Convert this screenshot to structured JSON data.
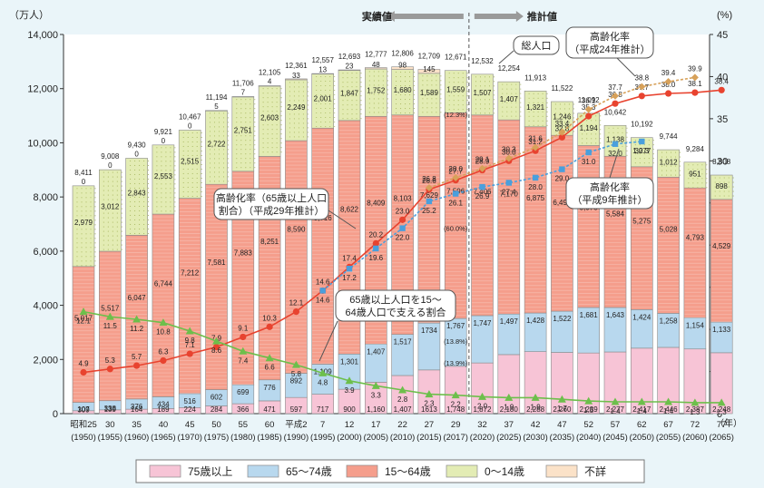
{
  "chart_data": {
    "type": "bar",
    "stacked": true,
    "y_left_unit": "（万人）",
    "y_right_unit": "(%)",
    "y_left_ticks": [
      "0",
      "2,000",
      "4,000",
      "6,000",
      "8,000",
      "10,000",
      "12,000",
      "14,000"
    ],
    "y_right_ticks": [
      "0",
      "5",
      "10",
      "15",
      "20",
      "25",
      "30",
      "35",
      "40",
      "45"
    ],
    "ylim": [
      0,
      14000
    ],
    "y2lim": [
      0,
      45
    ],
    "x_unit": "（年）",
    "categories": [
      {
        "era": "昭和25",
        "year": "(1950)"
      },
      {
        "era": "30",
        "year": "(1955)"
      },
      {
        "era": "35",
        "year": "(1960)"
      },
      {
        "era": "40",
        "year": "(1965)"
      },
      {
        "era": "45",
        "year": "(1970)"
      },
      {
        "era": "50",
        "year": "(1975)"
      },
      {
        "era": "55",
        "year": "(1980)"
      },
      {
        "era": "60",
        "year": "(1985)"
      },
      {
        "era": "平成2",
        "year": "(1990)"
      },
      {
        "era": "7",
        "year": "(1995)"
      },
      {
        "era": "12",
        "year": "(2000)"
      },
      {
        "era": "17",
        "year": "(2005)"
      },
      {
        "era": "22",
        "year": "(2010)"
      },
      {
        "era": "27",
        "year": "(2015)"
      },
      {
        "era": "29",
        "year": "(2017)"
      },
      {
        "era": "32",
        "year": "(2020)"
      },
      {
        "era": "37",
        "year": "(2025)"
      },
      {
        "era": "42",
        "year": "(2030)"
      },
      {
        "era": "47",
        "year": "(2035)"
      },
      {
        "era": "52",
        "year": "(2040)"
      },
      {
        "era": "57",
        "year": "(2045)"
      },
      {
        "era": "62",
        "year": "(2050)"
      },
      {
        "era": "67",
        "year": "(2055)"
      },
      {
        "era": "72",
        "year": "(2060)"
      },
      {
        "era": "77",
        "year": "(2065)"
      }
    ],
    "series": [
      {
        "name": "75歳以上",
        "color": "#f7c4d6",
        "values": [
          107,
          139,
          164,
          189,
          224,
          284,
          366,
          471,
          597,
          717,
          900,
          1160,
          1407,
          1613,
          1748,
          1872,
          2180,
          2288,
          2260,
          2239,
          2277,
          2417,
          2446,
          2387,
          2248
        ],
        "labels": [
          "107",
          "139",
          "164",
          "189",
          "224",
          "284",
          "366",
          "471",
          "597",
          "717",
          "900",
          "1,160",
          "1,407",
          "1613",
          "1,748",
          "1,872",
          "2,180",
          "2,288",
          "2,260",
          "2,239",
          "2,277",
          "2,417",
          "2,446",
          "2,387",
          "2,248"
        ]
      },
      {
        "name": "65～74歳",
        "color": "#b8d8ee",
        "values": [
          309,
          338,
          376,
          434,
          516,
          602,
          699,
          776,
          892,
          1109,
          1301,
          1407,
          1517,
          1734,
          1767,
          1747,
          1497,
          1428,
          1522,
          1681,
          1643,
          1424,
          1258,
          1154,
          1133
        ],
        "labels": [
          "309",
          "338",
          "376",
          "434",
          "516",
          "602",
          "699",
          "776",
          "892",
          "1,109",
          "1,301",
          "1,407",
          "1,517",
          "1734",
          "1,767",
          "1,747",
          "1,497",
          "1,428",
          "1,522",
          "1,681",
          "1,643",
          "1,424",
          "1,258",
          "1,154",
          "1,133"
        ]
      },
      {
        "name": "15～64歳",
        "color": "#f59e8c",
        "values": [
          5017,
          5517,
          6047,
          6744,
          7212,
          7581,
          7883,
          8251,
          8590,
          8716,
          8622,
          8409,
          8103,
          7629,
          7596,
          7406,
          7170,
          6875,
          6494,
          5978,
          5584,
          5275,
          5028,
          4793,
          4529
        ],
        "labels": [
          "5,017",
          "5,517",
          "6,047",
          "6,744",
          "7,212",
          "7,581",
          "7,883",
          "8,251",
          "8,590",
          "8,716",
          "8,622",
          "8,409",
          "8,103",
          "7,629",
          "7,596",
          "7,406",
          "7,170",
          "6,875",
          "6,494",
          "5,978",
          "5,584",
          "5,275",
          "5,028",
          "4,793",
          "4,529"
        ]
      },
      {
        "name": "0～14歳",
        "color": "#e3ecb4",
        "values": [
          2979,
          3012,
          2843,
          2553,
          2515,
          2722,
          2751,
          2603,
          2249,
          2001,
          1847,
          1752,
          1680,
          1589,
          1559,
          1507,
          1407,
          1321,
          1246,
          1194,
          1138,
          1077,
          1012,
          951,
          898
        ],
        "labels": [
          "2,979",
          "3,012",
          "2,843",
          "2,553",
          "2,515",
          "2,722",
          "2,751",
          "2,603",
          "2,249",
          "2,001",
          "1,847",
          "1,752",
          "1,680",
          "1,589",
          "1,559",
          "1,507",
          "1,407",
          "1,321",
          "1,246",
          "1,194",
          "1,138",
          "1,077",
          "1,012",
          "951",
          "898"
        ]
      },
      {
        "name": "不詳",
        "color": "#fbe2c8",
        "values": [
          0,
          0,
          0,
          0,
          0,
          5,
          7,
          4,
          33,
          13,
          23,
          48,
          98,
          145,
          0,
          0,
          0,
          0,
          0,
          0,
          0,
          0,
          0,
          0,
          0
        ],
        "labels": [
          "0",
          "0",
          "0",
          "0",
          "0",
          "5",
          "7",
          "4",
          "33",
          "13",
          "23",
          "48",
          "98",
          "145",
          "",
          "",
          "",
          "",
          "",
          "",
          "",
          "",
          "",
          "",
          ""
        ]
      }
    ],
    "totals": [
      "8,411",
      "9,008",
      "9,430",
      "9,921",
      "10,467",
      "11,194",
      "11,706",
      "12,105",
      "12,361",
      "12,557",
      "12,693",
      "12,777",
      "12,806",
      "12,709",
      "12,671",
      "12,532",
      "12,254",
      "11,913",
      "11,522",
      "11,092",
      "10,642",
      "10,192",
      "9,744",
      "9,284",
      "8,808"
    ],
    "percent_annotations": [
      {
        "index": 14,
        "text": "(12.3%)",
        "series": "0～14歳"
      },
      {
        "index": 14,
        "text": "(60.0%)",
        "series": "15～64歳"
      },
      {
        "index": 14,
        "text": "(13.9%)",
        "series": "65～74歳"
      },
      {
        "index": 14,
        "text": "(13.8%)",
        "series": "75歳以上"
      }
    ],
    "lines": [
      {
        "name": "高齢化率（65歳以上人口割合）（平成29年推計）",
        "color": "#e8432f",
        "marker": "circle",
        "y_axis": "right",
        "values": [
          4.9,
          5.3,
          5.7,
          6.3,
          7.1,
          7.9,
          9.1,
          10.3,
          12.1,
          14.6,
          17.4,
          20.2,
          23.0,
          26.6,
          27.7,
          28.9,
          30.0,
          31.2,
          32.8,
          35.3,
          36.8,
          37.7,
          38.0,
          38.1,
          38.4
        ],
        "labels": [
          "4.9",
          "5.3",
          "5.7",
          "6.3",
          "7.1",
          "7.9",
          "9.1",
          "10.3",
          "12.1",
          "14.6",
          "17.4",
          "20.2",
          "23.0",
          "26.6",
          "27.7",
          "28.9",
          "30.0",
          "31.2",
          "32.8",
          "35.3",
          "36.8",
          "37.7",
          "38.0",
          "38.1",
          "38.4"
        ]
      },
      {
        "name": "高齢化率（平成24年推計）",
        "color": "#d7a15a",
        "marker": "diamond",
        "dashed": true,
        "y_axis": "right",
        "start_index": 13,
        "values": [
          26.8,
          28.0,
          29.1,
          30.3,
          31.6,
          33.4,
          36.1,
          37.7,
          38.8,
          39.4,
          39.9
        ],
        "labels": [
          "26.8",
          "28.0",
          "29.1",
          "30.3",
          "31.6",
          "33.4",
          "36.1",
          "37.7",
          "38.8",
          "39.4",
          "39.9"
        ]
      },
      {
        "name": "高齢化率（平成9年推計）",
        "color": "#4a9fdc",
        "marker": "square",
        "dashed": true,
        "y_axis": "right",
        "start_index": 9,
        "values": [
          14.6,
          17.2,
          19.6,
          22.0,
          25.2,
          26.1,
          26.9,
          27.4,
          28.0,
          29.0,
          31.0,
          32.0,
          32.3
        ],
        "labels": [
          "14.6",
          "17.2",
          "19.6",
          "22.0",
          "25.2",
          "26.1",
          "26.9",
          "27.4",
          "28.0",
          "29.0",
          "31.0",
          "32.0",
          "32.3"
        ]
      },
      {
        "name": "65歳以上人口を15～64歳人口で支える割合",
        "color": "#6dbf4b",
        "marker": "triangle",
        "y_axis": "right",
        "values": [
          12.1,
          11.5,
          11.2,
          10.8,
          9.8,
          8.6,
          7.4,
          6.6,
          5.8,
          4.8,
          3.9,
          3.3,
          2.8,
          2.3,
          2.2,
          2.0,
          1.9,
          1.9,
          1.7,
          1.5,
          1.4,
          1.4,
          1.4,
          1.3,
          1.3
        ],
        "labels": [
          "12.1",
          "11.5",
          "11.2",
          "10.8",
          "9.8",
          "8.6",
          "7.4",
          "6.6",
          "5.8",
          "4.8",
          "3.9",
          "3.3",
          "2.8",
          "2.3",
          "2.2",
          "2.0",
          "1.9",
          "1.9",
          "1.7",
          "1.5",
          "1.4",
          "1.4",
          "1.4",
          "1.3",
          "1.3"
        ]
      }
    ],
    "annotations": {
      "actual": "実績値",
      "projected": "推計値",
      "total_population": "総人口",
      "aging_rate_h29": [
        "高齢化率（65歳以上人口",
        "割合）（平成29年推計）"
      ],
      "aging_rate_h24": [
        "高齢化率",
        "（平成24年推計）"
      ],
      "aging_rate_h9": [
        "高齢化率",
        "（平成9年推計）"
      ],
      "support_ratio": [
        "65歳以上人口を15～",
        "64歳人口で支える割合"
      ]
    },
    "legend": [
      {
        "label": "75歳以上",
        "color": "#f7c4d6"
      },
      {
        "label": "65～74歳",
        "color": "#b8d8ee"
      },
      {
        "label": "15～64歳",
        "color": "#f59e8c"
      },
      {
        "label": "0～14歳",
        "color": "#e3ecb4"
      },
      {
        "label": "不詳",
        "color": "#fbe2c8"
      }
    ],
    "legend_position": "bottom",
    "grid": false
  }
}
